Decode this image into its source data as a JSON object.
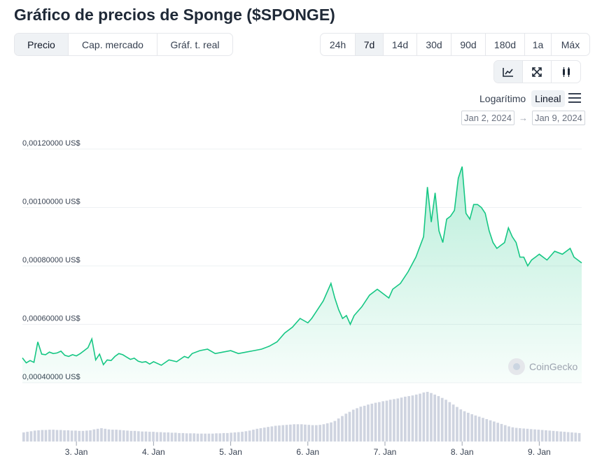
{
  "title": "Gráfico de precios de Sponge ($SPONGE)",
  "view_tabs": [
    "Precio",
    "Cap. mercado",
    "Gráf. t. real"
  ],
  "view_active": 0,
  "ranges": [
    "24h",
    "7d",
    "14d",
    "30d",
    "90d",
    "180d",
    "1a",
    "Máx"
  ],
  "range_active": 1,
  "chart_tools": [
    "line-chart-icon",
    "expand-icon",
    "candlestick-icon"
  ],
  "scale": {
    "log_label": "Logarítimo",
    "linear_label": "Lineal"
  },
  "date_range": {
    "from": "Jan 2, 2024",
    "arrow": "→",
    "to": "Jan 9, 2024"
  },
  "watermark": "CoinGecko",
  "colors": {
    "line": "#16c784",
    "volume": "#cfd4e0",
    "grid": "#eef0f3"
  },
  "chart_data": {
    "type": "area",
    "title": "",
    "xlabel": "",
    "ylabel": "",
    "ylim": [
      0.0004,
      0.0012
    ],
    "y_ticks": [
      0.0012,
      0.001,
      0.0008,
      0.0006,
      0.0004
    ],
    "y_tick_labels": [
      "0,00120000 US$",
      "0,00100000 US$",
      "0,00080000 US$",
      "0,00060000 US$",
      "0,00040000 US$"
    ],
    "x_ticks": [
      3,
      4,
      5,
      6,
      7,
      8,
      9
    ],
    "x_tick_labels": [
      "3. Jan",
      "4. Jan",
      "5. Jan",
      "6. Jan",
      "7. Jan",
      "8. Jan",
      "9. Jan"
    ],
    "xlim": [
      2.3,
      9.55
    ],
    "grid": true,
    "series": [
      {
        "x": [
          2.3,
          2.35,
          2.4,
          2.45,
          2.5,
          2.55,
          2.6,
          2.65,
          2.7,
          2.75,
          2.8,
          2.85,
          2.9,
          2.95,
          3.0,
          3.05,
          3.1,
          3.15,
          3.2,
          3.25,
          3.3,
          3.35,
          3.4,
          3.45,
          3.5,
          3.55,
          3.6,
          3.65,
          3.7,
          3.75,
          3.8,
          3.85,
          3.9,
          3.95,
          4.0,
          4.1,
          4.2,
          4.3,
          4.4,
          4.45,
          4.5,
          4.6,
          4.7,
          4.8,
          4.9,
          5.0,
          5.1,
          5.2,
          5.3,
          5.4,
          5.5,
          5.6,
          5.7,
          5.8,
          5.9,
          6.0,
          6.05,
          6.1,
          6.2,
          6.3,
          6.35,
          6.4,
          6.45,
          6.5,
          6.55,
          6.6,
          6.7,
          6.8,
          6.9,
          7.0,
          7.05,
          7.1,
          7.2,
          7.3,
          7.4,
          7.5,
          7.55,
          7.6,
          7.65,
          7.7,
          7.75,
          7.8,
          7.85,
          7.9,
          7.95,
          8.0,
          8.05,
          8.1,
          8.15,
          8.2,
          8.25,
          8.3,
          8.35,
          8.4,
          8.45,
          8.5,
          8.55,
          8.6,
          8.65,
          8.7,
          8.75,
          8.8,
          8.85,
          8.9,
          8.95,
          9.0,
          9.1,
          9.2,
          9.3,
          9.4,
          9.45,
          9.5,
          9.55
        ],
        "y": [
          0.000485,
          0.000468,
          0.000476,
          0.00047,
          0.00054,
          0.000498,
          0.000496,
          0.000505,
          0.0005,
          0.000502,
          0.000508,
          0.000494,
          0.00049,
          0.000496,
          0.000492,
          0.0005,
          0.00051,
          0.00052,
          0.00055,
          0.000478,
          0.000498,
          0.000462,
          0.000478,
          0.000476,
          0.00049,
          0.0005,
          0.000496,
          0.000488,
          0.00048,
          0.000484,
          0.000474,
          0.00047,
          0.000472,
          0.000464,
          0.000472,
          0.00046,
          0.000478,
          0.000472,
          0.00049,
          0.000485,
          0.0005,
          0.00051,
          0.000515,
          0.0005,
          0.000505,
          0.00051,
          0.0005,
          0.000505,
          0.00051,
          0.000515,
          0.000525,
          0.00054,
          0.00057,
          0.00059,
          0.00062,
          0.000605,
          0.00062,
          0.00064,
          0.00068,
          0.00074,
          0.00069,
          0.00065,
          0.00062,
          0.00063,
          0.0006,
          0.00063,
          0.00066,
          0.0007,
          0.00072,
          0.0007,
          0.00069,
          0.00072,
          0.00074,
          0.00078,
          0.00083,
          0.0009,
          0.00107,
          0.00095,
          0.00105,
          0.00092,
          0.00088,
          0.00096,
          0.00097,
          0.00099,
          0.0011,
          0.00114,
          0.00098,
          0.00096,
          0.00101,
          0.00101,
          0.001,
          0.00098,
          0.00092,
          0.00088,
          0.00086,
          0.00087,
          0.00088,
          0.00093,
          0.0009,
          0.00088,
          0.00083,
          0.00083,
          0.0008,
          0.00082,
          0.00083,
          0.00084,
          0.00082,
          0.00085,
          0.00084,
          0.00086,
          0.00083,
          0.00082,
          0.00081
        ]
      }
    ],
    "volume": {
      "relative": [
        0.3,
        0.32,
        0.34,
        0.36,
        0.37,
        0.38,
        0.38,
        0.39,
        0.39,
        0.38,
        0.38,
        0.37,
        0.37,
        0.36,
        0.36,
        0.35,
        0.35,
        0.36,
        0.37,
        0.4,
        0.42,
        0.44,
        0.42,
        0.4,
        0.39,
        0.39,
        0.38,
        0.37,
        0.36,
        0.35,
        0.35,
        0.34,
        0.33,
        0.33,
        0.32,
        0.32,
        0.31,
        0.31,
        0.3,
        0.3,
        0.29,
        0.29,
        0.28,
        0.28,
        0.27,
        0.27,
        0.27,
        0.26,
        0.26,
        0.26,
        0.26,
        0.26,
        0.27,
        0.27,
        0.28,
        0.28,
        0.29,
        0.3,
        0.31,
        0.32,
        0.34,
        0.36,
        0.39,
        0.42,
        0.44,
        0.46,
        0.48,
        0.5,
        0.52,
        0.53,
        0.54,
        0.55,
        0.56,
        0.57,
        0.57,
        0.57,
        0.56,
        0.55,
        0.54,
        0.54,
        0.55,
        0.57,
        0.6,
        0.63,
        0.68,
        0.76,
        0.84,
        0.92,
        0.98,
        1.05,
        1.1,
        1.15,
        1.18,
        1.22,
        1.25,
        1.28,
        1.3,
        1.33,
        1.35,
        1.38,
        1.4,
        1.42,
        1.45,
        1.48,
        1.5,
        1.52,
        1.55,
        1.58,
        1.62,
        1.64,
        1.6,
        1.55,
        1.5,
        1.44,
        1.38,
        1.3,
        1.22,
        1.14,
        1.06,
        1.0,
        0.95,
        0.9,
        0.86,
        0.82,
        0.78,
        0.74,
        0.7,
        0.66,
        0.62,
        0.58,
        0.54,
        0.5,
        0.47,
        0.45,
        0.44,
        0.43,
        0.42,
        0.41,
        0.4,
        0.39,
        0.38,
        0.37,
        0.36,
        0.35,
        0.34,
        0.33,
        0.32,
        0.31,
        0.3,
        0.29,
        0.28
      ]
    }
  }
}
